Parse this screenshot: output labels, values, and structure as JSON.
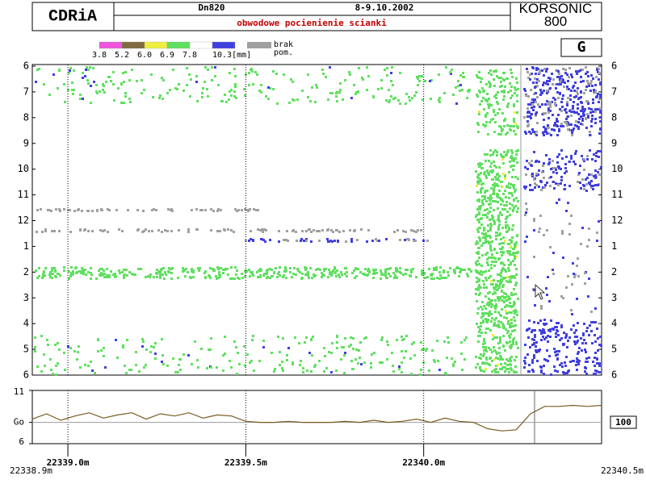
{
  "header": {
    "logo": "CDRiA",
    "diameter": "Dn820",
    "date": "8-9.10.2002",
    "subtitle": "obwodowe pocienienie scianki",
    "brand": "KORSONIC\n800"
  },
  "legend": {
    "labels": [
      "3.8",
      "5.2",
      "6.0",
      "6.9",
      "7.8",
      "10.3[mm]"
    ],
    "colors": [
      "#ee55dd",
      "#806a40",
      "#eeee40",
      "#60e060",
      "#ffffff",
      "#4040e0"
    ],
    "missing_label": "brak\npom.",
    "missing_color": "#a0a0a0"
  },
  "mode": "G",
  "map": {
    "clock_labels": [
      "6",
      "7",
      "8",
      "9",
      "10",
      "11",
      "12",
      "1",
      "2",
      "3",
      "4",
      "5",
      "6"
    ]
  },
  "trace": {
    "x": [
      22338.9,
      22338.94,
      22338.98,
      22339.02,
      22339.06,
      22339.1,
      22339.14,
      22339.18,
      22339.22,
      22339.26,
      22339.3,
      22339.34,
      22339.38,
      22339.42,
      22339.46,
      22339.5,
      22339.54,
      22339.58,
      22339.62,
      22339.66,
      22339.7,
      22339.74,
      22339.78,
      22339.82,
      22339.86,
      22339.9,
      22339.94,
      22339.98,
      22340.02,
      22340.06,
      22340.1,
      22340.14,
      22340.18,
      22340.22,
      22340.26,
      22340.3,
      22340.34,
      22340.38,
      22340.42,
      22340.46,
      22340.5
    ],
    "y": [
      8.3,
      8.8,
      8.2,
      8.6,
      8.9,
      8.4,
      8.7,
      8.9,
      8.3,
      8.8,
      8.6,
      8.9,
      8.4,
      8.7,
      8.6,
      8.1,
      8.0,
      8.0,
      8.1,
      8.0,
      8.0,
      8.0,
      8.1,
      8.0,
      8.2,
      8.0,
      8.1,
      8.3,
      8.0,
      8.4,
      8.1,
      8.0,
      7.4,
      7.2,
      7.3,
      8.8,
      9.5,
      9.5,
      9.6,
      9.5,
      9.6
    ],
    "color": "#7a5a20",
    "ylim": [
      6,
      11
    ],
    "yticks": [
      11,
      {
        "value": 8,
        "label": "Go"
      },
      6
    ],
    "xlim": [
      {
        "value": 22338.9,
        "label": "22338.9m"
      },
      {
        "value": 22340.5,
        "label": "22340.5m"
      }
    ],
    "xticks": [
      {
        "value": 22339.0,
        "label": "22339.0m"
      },
      {
        "value": 22339.5,
        "label": "22339.5m"
      },
      {
        "value": 22340.0,
        "label": "22340.0m"
      }
    ],
    "readout": "100"
  }
}
